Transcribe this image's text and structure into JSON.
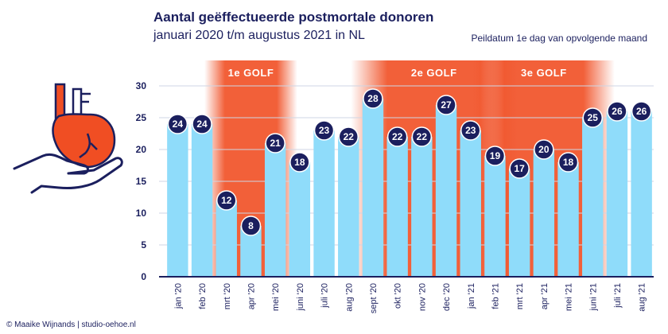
{
  "header": {
    "title": "Aantal geëffectueerde postmortale donoren",
    "subtitle": "januari 2020 t/m augustus 2021 in NL",
    "note": "Peildatum 1e dag van opvolgende maand"
  },
  "credit": "© Maaike Wijnands | studio-oehoe.nl",
  "illustration": {
    "icon": "heart-in-hand-icon"
  },
  "colors": {
    "bar": "#8fdcfa",
    "marker": "#1b1f5e",
    "wave": "#f04e23",
    "axis": "#1b1f5e"
  },
  "chart_data": {
    "type": "bar",
    "categories": [
      "jan '20",
      "feb '20",
      "mrt '20",
      "apr '20",
      "mei '20",
      "juni '20",
      "juli '20",
      "aug '20",
      "sept '20",
      "okt '20",
      "nov '20",
      "dec '20",
      "jan '21",
      "feb '21",
      "mrt '21",
      "apr '21",
      "mei '21",
      "juni '21",
      "juli '21",
      "aug '21"
    ],
    "values": [
      24,
      24,
      12,
      8,
      21,
      18,
      23,
      22,
      28,
      22,
      22,
      27,
      23,
      19,
      17,
      20,
      18,
      25,
      26,
      26
    ],
    "ylim": [
      0,
      30
    ],
    "yticks": [
      0,
      5,
      10,
      15,
      20,
      25,
      30
    ],
    "grid": true,
    "waves": [
      {
        "label": "1e GOLF",
        "start": 2,
        "end": 4
      },
      {
        "label": "2e GOLF",
        "start": 8,
        "end": 13
      },
      {
        "label": "3e GOLF",
        "start": 13,
        "end": 17
      }
    ]
  }
}
